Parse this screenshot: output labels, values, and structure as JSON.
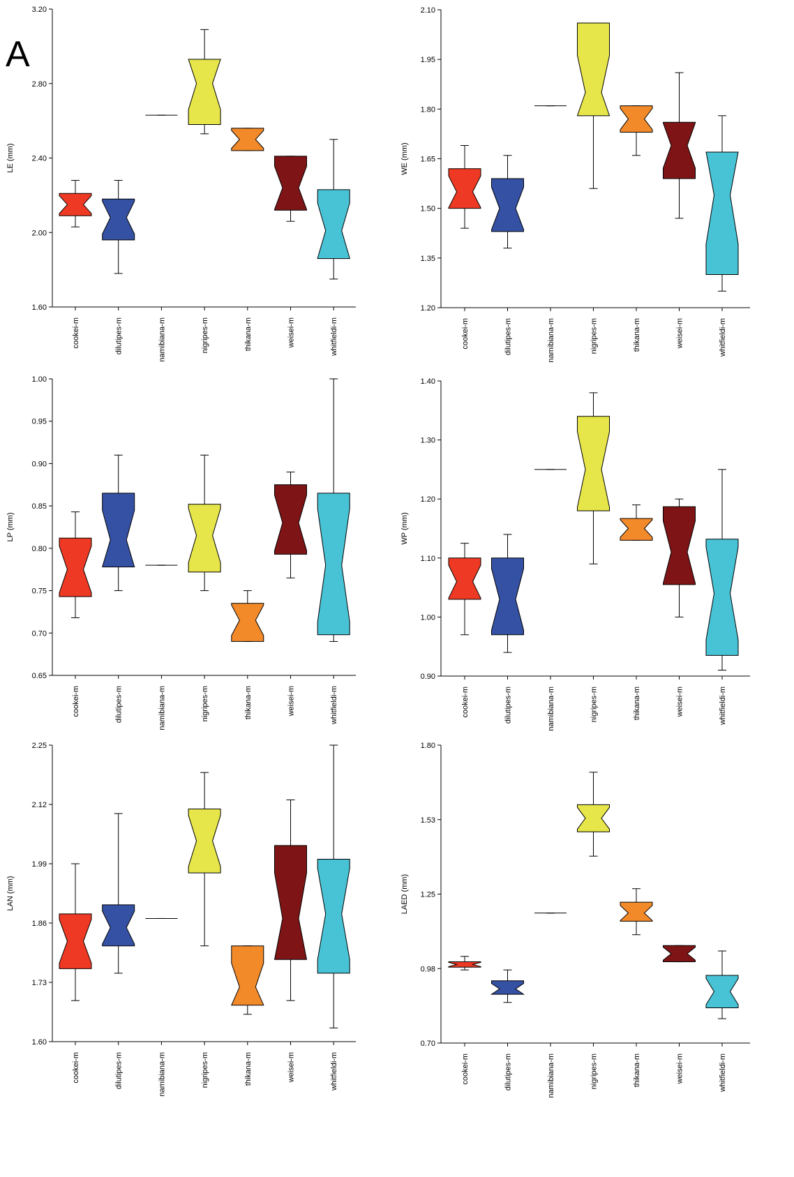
{
  "panel_label": "A",
  "chart_data": [
    {
      "type": "box",
      "y_label": "LE (mm)",
      "categories": [
        "cookei-m",
        "dilutipes-m",
        "namibiana-m",
        "nigripes-m",
        "thikana-m",
        "weisei-m",
        "whitfieldi-m"
      ],
      "colors": [
        "#ee3a24",
        "#3551a4",
        "#000000",
        "#e6e64a",
        "#f28a2a",
        "#7e1416",
        "#48c3d6"
      ],
      "boxes": [
        {
          "min": 2.03,
          "q1": 2.09,
          "median": 2.15,
          "q3": 2.21,
          "max": 2.28
        },
        {
          "min": 1.78,
          "q1": 1.96,
          "median": 2.08,
          "q3": 2.18,
          "max": 2.28
        },
        {
          "min": 2.63,
          "q1": 2.63,
          "median": 2.63,
          "q3": 2.63,
          "max": 2.63
        },
        {
          "min": 2.53,
          "q1": 2.58,
          "median": 2.8,
          "q3": 2.93,
          "max": 3.09
        },
        {
          "min": 2.44,
          "q1": 2.44,
          "median": 2.5,
          "q3": 2.56,
          "max": 2.56
        },
        {
          "min": 2.06,
          "q1": 2.12,
          "median": 2.24,
          "q3": 2.41,
          "max": 2.41
        },
        {
          "min": 1.75,
          "q1": 1.86,
          "median": 2.01,
          "q3": 2.23,
          "max": 2.5
        }
      ],
      "ylim": [
        1.6,
        3.2
      ],
      "yticks": [
        {
          "value": 1.6,
          "label": "1.60"
        },
        {
          "value": 2,
          "label": "2.00"
        },
        {
          "value": 2.4,
          "label": "2.40"
        },
        {
          "value": 2.8,
          "label": "2.80"
        },
        {
          "value": 3.2,
          "label": "3.20"
        }
      ]
    },
    {
      "type": "box",
      "y_label": "WE (mm)",
      "categories": [
        "cookei-m",
        "dilutipes-m",
        "namibiana-m",
        "nigripes-m",
        "thikana-m",
        "weisei-m",
        "whitfieldi-m"
      ],
      "colors": [
        "#ee3a24",
        "#3551a4",
        "#000000",
        "#e6e64a",
        "#f28a2a",
        "#7e1416",
        "#48c3d6"
      ],
      "boxes": [
        {
          "min": 1.44,
          "q1": 1.5,
          "median": 1.55,
          "q3": 1.62,
          "max": 1.69
        },
        {
          "min": 1.38,
          "q1": 1.43,
          "median": 1.5,
          "q3": 1.59,
          "max": 1.66
        },
        {
          "min": 1.81,
          "q1": 1.81,
          "median": 1.81,
          "q3": 1.81,
          "max": 1.81
        },
        {
          "min": 1.56,
          "q1": 1.78,
          "median": 1.85,
          "q3": 2.06,
          "max": 2.06
        },
        {
          "min": 1.66,
          "q1": 1.73,
          "median": 1.77,
          "q3": 1.81,
          "max": 1.81
        },
        {
          "min": 1.47,
          "q1": 1.59,
          "median": 1.69,
          "q3": 1.76,
          "max": 1.91
        },
        {
          "min": 1.25,
          "q1": 1.3,
          "median": 1.54,
          "q3": 1.67,
          "max": 1.78
        }
      ],
      "ylim": [
        1.2,
        2.1
      ],
      "yticks": [
        {
          "value": 1.2,
          "label": "1.20"
        },
        1.35,
        {
          "value": 1.5,
          "label": "1.50"
        },
        1.65,
        {
          "value": 1.8,
          "label": "1.80"
        },
        1.95,
        {
          "value": 2.1,
          "label": "2.10"
        }
      ]
    },
    {
      "type": "box",
      "y_label": "LP (mm)",
      "categories": [
        "cookei-m",
        "dilutipes-m",
        "namibiana-m",
        "nigripes-m",
        "thikana-m",
        "weisei-m",
        "whitfieldi-m"
      ],
      "colors": [
        "#ee3a24",
        "#3551a4",
        "#000000",
        "#e6e64a",
        "#f28a2a",
        "#7e1416",
        "#48c3d6"
      ],
      "boxes": [
        {
          "min": 0.718,
          "q1": 0.743,
          "median": 0.775,
          "q3": 0.812,
          "max": 0.843
        },
        {
          "min": 0.75,
          "q1": 0.778,
          "median": 0.81,
          "q3": 0.865,
          "max": 0.91
        },
        {
          "min": 0.78,
          "q1": 0.78,
          "median": 0.78,
          "q3": 0.78,
          "max": 0.78
        },
        {
          "min": 0.75,
          "q1": 0.772,
          "median": 0.815,
          "q3": 0.852,
          "max": 0.91
        },
        {
          "min": 0.69,
          "q1": 0.69,
          "median": 0.715,
          "q3": 0.735,
          "max": 0.75
        },
        {
          "min": 0.765,
          "q1": 0.793,
          "median": 0.83,
          "q3": 0.875,
          "max": 0.89
        },
        {
          "min": 0.69,
          "q1": 0.698,
          "median": 0.78,
          "q3": 0.865,
          "max": 1
        }
      ],
      "ylim": [
        0.65,
        1
      ],
      "yticks": [
        0.65,
        {
          "value": 0.7,
          "label": "0.70"
        },
        0.75,
        {
          "value": 0.8,
          "label": "0.80"
        },
        0.85,
        {
          "value": 0.9,
          "label": "0.90"
        },
        0.95,
        {
          "value": 1,
          "label": "1.00"
        }
      ]
    },
    {
      "type": "box",
      "y_label": "WP (mm)",
      "categories": [
        "cookei-m",
        "dilutipes-m",
        "namibiana-m",
        "nigripes-m",
        "thikana-m",
        "weisei-m",
        "whitfieldi-m"
      ],
      "colors": [
        "#ee3a24",
        "#3551a4",
        "#000000",
        "#e6e64a",
        "#f28a2a",
        "#7e1416",
        "#48c3d6"
      ],
      "boxes": [
        {
          "min": 0.97,
          "q1": 1.03,
          "median": 1.06,
          "q3": 1.1,
          "max": 1.125
        },
        {
          "min": 0.94,
          "q1": 0.97,
          "median": 1.03,
          "q3": 1.1,
          "max": 1.14
        },
        {
          "min": 1.25,
          "q1": 1.25,
          "median": 1.25,
          "q3": 1.25,
          "max": 1.25
        },
        {
          "min": 1.09,
          "q1": 1.18,
          "median": 1.25,
          "q3": 1.34,
          "max": 1.38
        },
        {
          "min": 1.13,
          "q1": 1.13,
          "median": 1.15,
          "q3": 1.167,
          "max": 1.19
        },
        {
          "min": 1,
          "q1": 1.055,
          "median": 1.11,
          "q3": 1.187,
          "max": 1.2
        },
        {
          "min": 0.91,
          "q1": 0.935,
          "median": 1.04,
          "q3": 1.132,
          "max": 1.25
        }
      ],
      "ylim": [
        0.9,
        1.4
      ],
      "yticks": [
        {
          "value": 0.9,
          "label": "0.90"
        },
        {
          "value": 1,
          "label": "1.00"
        },
        {
          "value": 1.1,
          "label": "1.10"
        },
        {
          "value": 1.2,
          "label": "1.20"
        },
        {
          "value": 1.3,
          "label": "1.30"
        },
        {
          "value": 1.4,
          "label": "1.40"
        }
      ]
    },
    {
      "type": "box",
      "y_label": "LAN (mm)",
      "categories": [
        "cookei-m",
        "dilutipes-m",
        "namibiana-m",
        "nigripes-m",
        "thikana-m",
        "weisei-m",
        "whitfieldi-m"
      ],
      "colors": [
        "#ee3a24",
        "#3551a4",
        "#000000",
        "#e6e64a",
        "#f28a2a",
        "#7e1416",
        "#48c3d6"
      ],
      "boxes": [
        {
          "min": 1.69,
          "q1": 1.76,
          "median": 1.82,
          "q3": 1.88,
          "max": 1.99
        },
        {
          "min": 1.75,
          "q1": 1.81,
          "median": 1.85,
          "q3": 1.9,
          "max": 2.1
        },
        {
          "min": 1.87,
          "q1": 1.87,
          "median": 1.87,
          "q3": 1.87,
          "max": 1.87
        },
        {
          "min": 1.81,
          "q1": 1.97,
          "median": 2.04,
          "q3": 2.11,
          "max": 2.19
        },
        {
          "min": 1.66,
          "q1": 1.68,
          "median": 1.72,
          "q3": 1.81,
          "max": 1.81
        },
        {
          "min": 1.69,
          "q1": 1.78,
          "median": 1.87,
          "q3": 2.03,
          "max": 2.13
        },
        {
          "min": 1.63,
          "q1": 1.75,
          "median": 1.88,
          "q3": 2,
          "max": 2.25
        }
      ],
      "ylim": [
        1.6,
        2.25
      ],
      "yticks": [
        {
          "value": 1.6,
          "label": "1.60"
        },
        1.73,
        1.86,
        1.99,
        2.12,
        2.25
      ]
    },
    {
      "type": "box",
      "y_label": "LAED (mm)",
      "categories": [
        "cookei-m",
        "dilutipes-m",
        "namibiana-m",
        "nigripes-m",
        "thikana-m",
        "weisei-m",
        "whitfieldi-m"
      ],
      "colors": [
        "#ee3a24",
        "#3551a4",
        "#000000",
        "#e6e64a",
        "#f28a2a",
        "#7e1416",
        "#48c3d6"
      ],
      "boxes": [
        {
          "min": 0.97,
          "q1": 0.98,
          "median": 0.99,
          "q3": 1,
          "max": 1.02
        },
        {
          "min": 0.85,
          "q1": 0.88,
          "median": 0.9,
          "q3": 0.93,
          "max": 0.97
        },
        {
          "min": 1.18,
          "q1": 1.18,
          "median": 1.18,
          "q3": 1.18,
          "max": 1.18
        },
        {
          "min": 1.39,
          "q1": 1.48,
          "median": 1.53,
          "q3": 1.58,
          "max": 1.7
        },
        {
          "min": 1.1,
          "q1": 1.15,
          "median": 1.18,
          "q3": 1.22,
          "max": 1.27
        },
        {
          "min": 1,
          "q1": 1,
          "median": 1.03,
          "q3": 1.06,
          "max": 1.06
        },
        {
          "min": 0.79,
          "q1": 0.83,
          "median": 0.89,
          "q3": 0.95,
          "max": 1.04
        }
      ],
      "ylim": [
        0.7,
        1.8
      ],
      "yticks": [
        {
          "value": 0.7,
          "label": "0.70"
        },
        {
          "value": 0.975,
          "label": "0.98"
        },
        1.25,
        {
          "value": 1.525,
          "label": "1.53"
        },
        {
          "value": 1.8,
          "label": "1.80"
        }
      ]
    }
  ]
}
